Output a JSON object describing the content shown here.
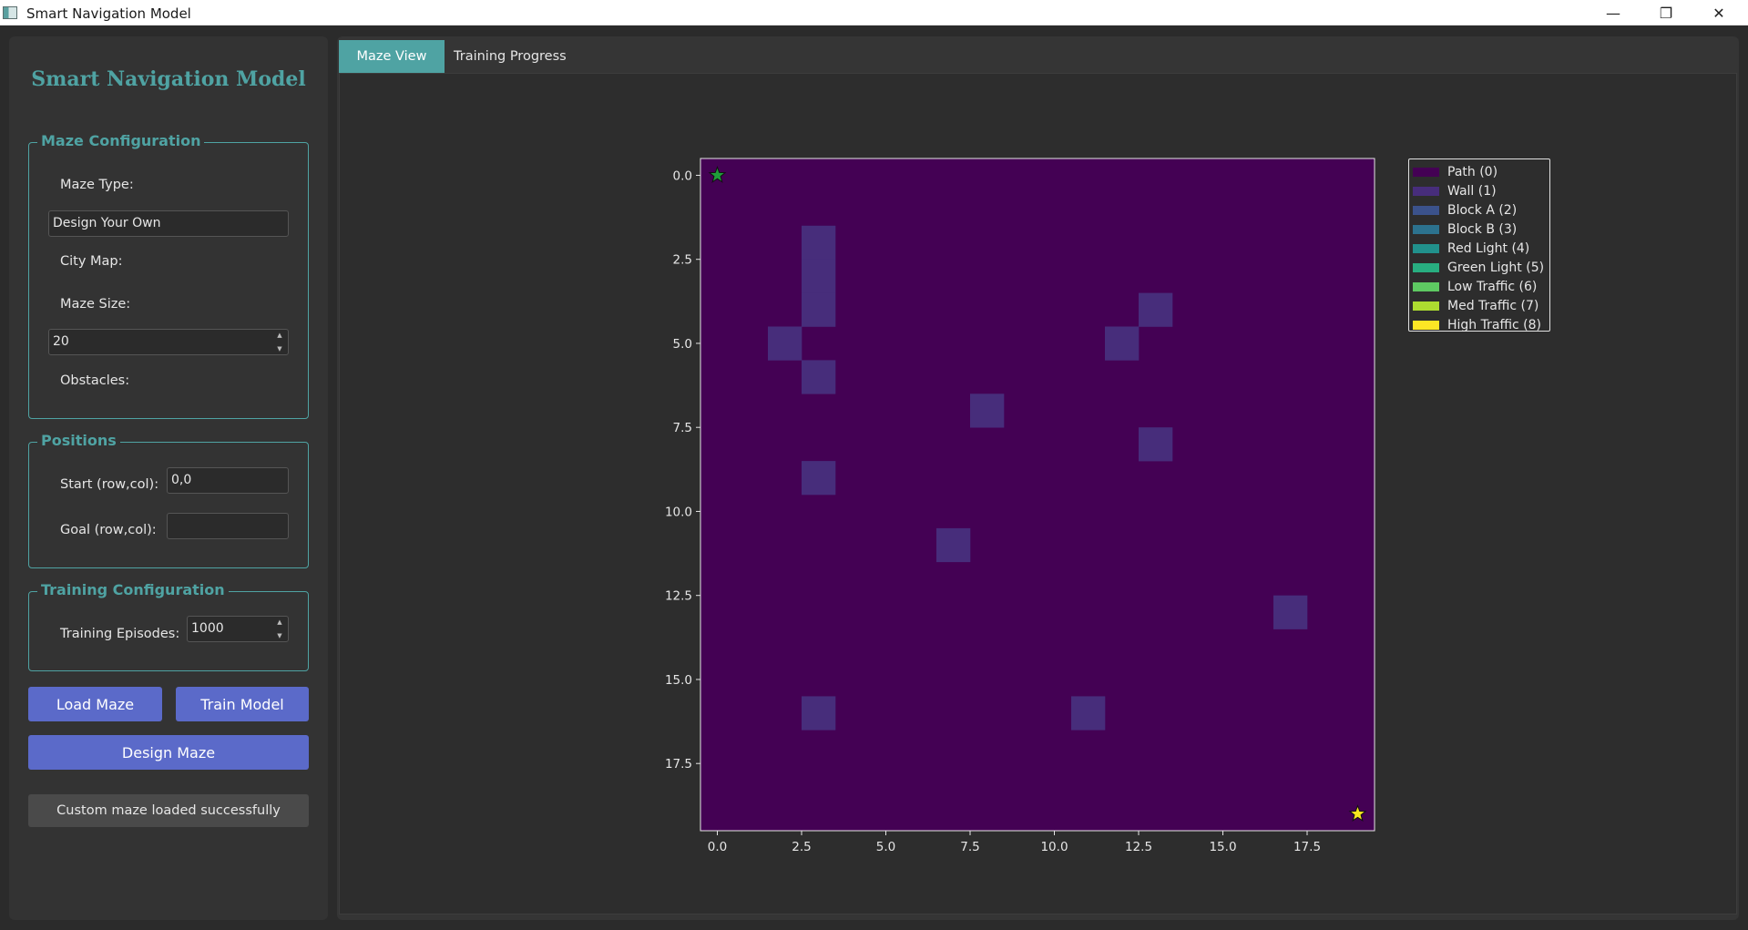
{
  "window": {
    "title": "Smart Navigation Model",
    "controls": {
      "minimize": "—",
      "maximize": "❐",
      "close": "✕"
    }
  },
  "sidebar": {
    "title": "Smart Navigation Model",
    "maze_config": {
      "title": "Maze Configuration",
      "maze_type_label": "Maze Type:",
      "maze_type_value": "Design Your Own",
      "city_map_label": "City Map:",
      "maze_size_label": "Maze Size:",
      "maze_size_value": "20",
      "obstacles_label": "Obstacles:"
    },
    "positions": {
      "title": "Positions",
      "start_label": "Start (row,col):",
      "start_value": "0,0",
      "goal_label": "Goal (row,col):",
      "goal_value": ""
    },
    "training": {
      "title": "Training Configuration",
      "episodes_label": "Training Episodes:",
      "episodes_value": "1000"
    },
    "buttons": {
      "load": "Load Maze",
      "train": "Train Model",
      "design": "Design Maze"
    },
    "status": "Custom maze loaded successfully"
  },
  "tabs": [
    {
      "label": "Maze View",
      "active": true
    },
    {
      "label": "Training Progress",
      "active": false
    }
  ],
  "chart_data": {
    "type": "heatmap",
    "grid_size": 20,
    "background_value": 0,
    "cells": [
      {
        "row": 2,
        "col": 3,
        "value": 1
      },
      {
        "row": 3,
        "col": 3,
        "value": 1
      },
      {
        "row": 4,
        "col": 3,
        "value": 1
      },
      {
        "row": 4,
        "col": 13,
        "value": 1
      },
      {
        "row": 5,
        "col": 2,
        "value": 1
      },
      {
        "row": 5,
        "col": 12,
        "value": 1
      },
      {
        "row": 6,
        "col": 3,
        "value": 1
      },
      {
        "row": 7,
        "col": 8,
        "value": 1
      },
      {
        "row": 8,
        "col": 13,
        "value": 1
      },
      {
        "row": 9,
        "col": 3,
        "value": 1
      },
      {
        "row": 11,
        "col": 7,
        "value": 1
      },
      {
        "row": 13,
        "col": 17,
        "value": 1
      },
      {
        "row": 16,
        "col": 3,
        "value": 1
      },
      {
        "row": 16,
        "col": 11,
        "value": 1
      }
    ],
    "start": {
      "row": 0,
      "col": 0,
      "color": "#1f9e3a"
    },
    "goal": {
      "row": 19,
      "col": 19,
      "color": "#f5e61f"
    },
    "x_ticks": [
      0.0,
      2.5,
      5.0,
      7.5,
      10.0,
      12.5,
      15.0,
      17.5
    ],
    "y_ticks": [
      0.0,
      2.5,
      5.0,
      7.5,
      10.0,
      12.5,
      15.0,
      17.5
    ],
    "tick_labels": [
      "0.0",
      "2.5",
      "5.0",
      "7.5",
      "10.0",
      "12.5",
      "15.0",
      "17.5"
    ],
    "xlim": [
      -0.5,
      19.5
    ],
    "ylim": [
      19.5,
      -0.5
    ],
    "legend_placement": "outside-right",
    "legend": [
      {
        "label": "Path (0)",
        "value": 0,
        "color": "#440154"
      },
      {
        "label": "Wall (1)",
        "value": 1,
        "color": "#472d7b"
      },
      {
        "label": "Block A (2)",
        "value": 2,
        "color": "#3b528b"
      },
      {
        "label": "Block B (3)",
        "value": 3,
        "color": "#2c728e"
      },
      {
        "label": "Red Light (4)",
        "value": 4,
        "color": "#21918c"
      },
      {
        "label": "Green Light (5)",
        "value": 5,
        "color": "#28ae80"
      },
      {
        "label": "Low Traffic (6)",
        "value": 6,
        "color": "#5ec962"
      },
      {
        "label": "Med Traffic (7)",
        "value": 7,
        "color": "#addc30"
      },
      {
        "label": "High Traffic (8)",
        "value": 8,
        "color": "#fde725"
      }
    ]
  }
}
